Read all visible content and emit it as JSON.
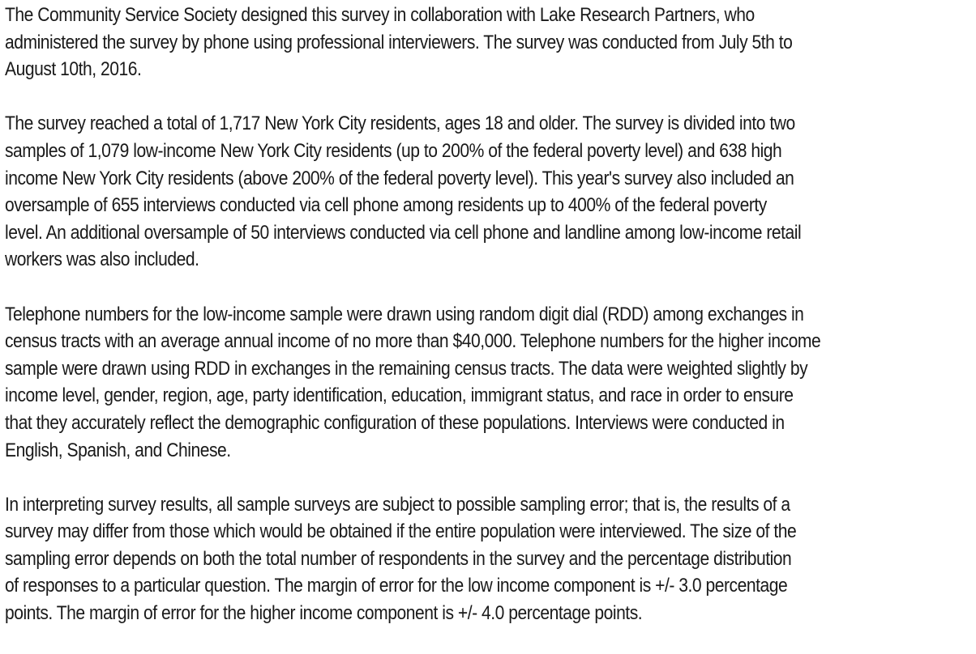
{
  "document": {
    "paragraphs": [
      {
        "lines": [
          "The Community Service Society designed this survey in collaboration with Lake Research Partners, who",
          "administered the survey by phone using professional interviewers. The survey was conducted from July 5th to",
          "August 10th, 2016."
        ]
      },
      {
        "lines": [
          "The survey reached a total of 1,717 New York City residents, ages 18 and older. The survey is divided into two",
          "samples of 1,079 low-income New York City residents (up to 200% of the federal poverty level) and 638 high",
          "income New York City residents (above 200% of the federal poverty level). This year's survey also included an",
          "oversample of 655 interviews conducted via cell phone among residents up to 400% of the federal poverty",
          "level. An additional oversample of 50 interviews conducted via cell phone and landline among low-income retail",
          "workers was also included."
        ]
      },
      {
        "lines": [
          "Telephone numbers for the low-income sample were drawn using random digit dial (RDD) among exchanges in",
          "census tracts with an average annual income of no more than $40,000. Telephone numbers for the higher income",
          "sample were drawn using RDD in exchanges in the remaining census tracts. The data were weighted slightly by",
          "income level, gender, region, age, party identification, education, immigrant status, and race in order to ensure",
          "that they accurately reflect the demographic configuration of these populations. Interviews were conducted in",
          "English, Spanish, and Chinese."
        ]
      },
      {
        "lines": [
          "In interpreting survey results, all sample surveys are subject to possible sampling error; that is, the results of a",
          "survey may differ from those which would be obtained if the entire population were interviewed. The size of the",
          "sampling error depends on both the total number of respondents in the survey and the percentage distribution",
          "of responses to a particular question. The margin of error for the low income component is +/- 3.0 percentage",
          "points. The margin of error for the higher income component is +/- 4.0 percentage points."
        ]
      }
    ]
  }
}
